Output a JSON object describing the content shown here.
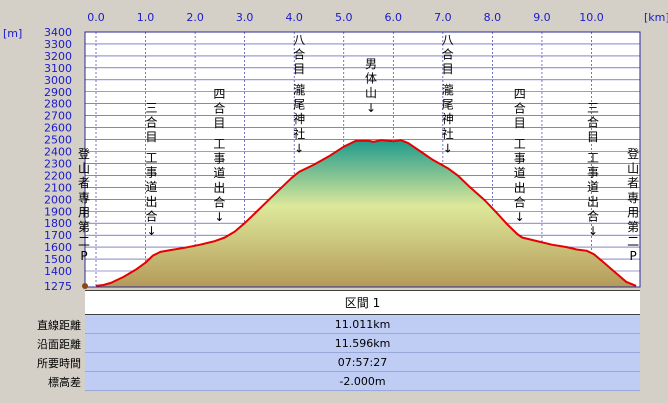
{
  "chart_data": {
    "type": "area",
    "x_unit": "[km]",
    "y_unit": "[m]",
    "xlim": [
      0,
      10.9
    ],
    "ylim": [
      1275,
      3400
    ],
    "x_ticks": [
      0.0,
      1.0,
      2.0,
      3.0,
      4.0,
      5.0,
      6.0,
      7.0,
      8.0,
      9.0,
      10.0
    ],
    "x_tick_labels": [
      "0.0",
      "1.0",
      "2.0",
      "3.0",
      "4.0",
      "5.0",
      "6.0",
      "7.0",
      "8.0",
      "9.0",
      "10.0"
    ],
    "y_ticks": [
      1400,
      1500,
      1600,
      1700,
      1800,
      1900,
      2000,
      2100,
      2200,
      2300,
      2400,
      2500,
      2600,
      2700,
      2800,
      2900,
      3000,
      3100,
      3200,
      3300,
      3400
    ],
    "y_tick_labels": [
      "1400",
      "1500",
      "1600",
      "1700",
      "1800",
      "1900",
      "2000",
      "2100",
      "2200",
      "2300",
      "2400",
      "2500",
      "2600",
      "2700",
      "2800",
      "2900",
      "3000",
      "3100",
      "3200",
      "3300",
      "3400"
    ],
    "y_min_label": "1275",
    "grid": true,
    "points": [
      [
        0.0,
        1275
      ],
      [
        0.15,
        1283
      ],
      [
        0.3,
        1300
      ],
      [
        0.55,
        1350
      ],
      [
        0.8,
        1410
      ],
      [
        1.0,
        1470
      ],
      [
        1.15,
        1530
      ],
      [
        1.3,
        1560
      ],
      [
        1.5,
        1575
      ],
      [
        1.8,
        1595
      ],
      [
        2.1,
        1620
      ],
      [
        2.4,
        1650
      ],
      [
        2.6,
        1680
      ],
      [
        2.8,
        1730
      ],
      [
        3.0,
        1800
      ],
      [
        3.2,
        1880
      ],
      [
        3.45,
        1980
      ],
      [
        3.7,
        2080
      ],
      [
        3.95,
        2180
      ],
      [
        4.1,
        2230
      ],
      [
        4.4,
        2290
      ],
      [
        4.7,
        2360
      ],
      [
        5.0,
        2440
      ],
      [
        5.25,
        2490
      ],
      [
        5.5,
        2490
      ],
      [
        5.6,
        2480
      ],
      [
        5.75,
        2495
      ],
      [
        6.0,
        2485
      ],
      [
        6.15,
        2495
      ],
      [
        6.3,
        2470
      ],
      [
        6.55,
        2400
      ],
      [
        6.8,
        2330
      ],
      [
        7.1,
        2260
      ],
      [
        7.3,
        2200
      ],
      [
        7.55,
        2100
      ],
      [
        7.85,
        1990
      ],
      [
        8.1,
        1880
      ],
      [
        8.3,
        1790
      ],
      [
        8.5,
        1710
      ],
      [
        8.6,
        1680
      ],
      [
        8.9,
        1650
      ],
      [
        9.2,
        1620
      ],
      [
        9.5,
        1600
      ],
      [
        9.7,
        1580
      ],
      [
        9.9,
        1570
      ],
      [
        10.05,
        1540
      ],
      [
        10.25,
        1470
      ],
      [
        10.5,
        1380
      ],
      [
        10.7,
        1310
      ],
      [
        10.9,
        1275
      ]
    ],
    "annotations": [
      {
        "x": 0.0,
        "text": "登山者専用第二P"
      },
      {
        "x": 1.2,
        "text": "三合目"
      },
      {
        "x": 1.2,
        "text": "工事道出合↓"
      },
      {
        "x": 2.55,
        "text": "四合目"
      },
      {
        "x": 2.55,
        "text": "工事道出合↓"
      },
      {
        "x": 4.1,
        "text": "八合目"
      },
      {
        "x": 4.1,
        "text": "瀧尾神社↓"
      },
      {
        "x": 5.55,
        "text": "男体山↓"
      },
      {
        "x": 7.1,
        "text": "八合目"
      },
      {
        "x": 7.1,
        "text": "瀧尾神社↓"
      },
      {
        "x": 8.55,
        "text": "四合目"
      },
      {
        "x": 8.55,
        "text": "工事道出合↓"
      },
      {
        "x": 10.05,
        "text": "三合目"
      },
      {
        "x": 10.05,
        "text": "工事道出合↓"
      },
      {
        "x": 10.9,
        "text": "登山者専用第二P"
      }
    ],
    "colors": {
      "line": "#e60000",
      "plot_bg": "#ffffff",
      "grid": "#3a3aa8",
      "tick_text": "#1a1acc",
      "fill_top": "#1e9a8c",
      "fill_mid": "#dde89a",
      "fill_bottom": "#b59a5a"
    }
  },
  "summary": {
    "header": "区間 1",
    "rows": [
      {
        "label": "直線距離",
        "value": "11.011km"
      },
      {
        "label": "沿面距離",
        "value": "11.596km"
      },
      {
        "label": "所要時間",
        "value": "07:57:27"
      },
      {
        "label": "標高差",
        "value": "-2.000m"
      }
    ]
  }
}
